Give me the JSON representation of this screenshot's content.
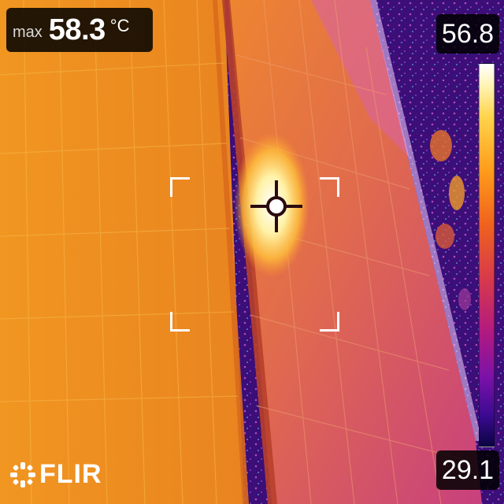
{
  "readout": {
    "label": "max",
    "value": "58.3",
    "unit": "°C"
  },
  "scale": {
    "max": "56.8",
    "min": "29.1"
  },
  "brand": {
    "name": "FLIR"
  },
  "palette": {
    "hot_spot": "#ffffff",
    "panel_left": "#ea8b1d",
    "panel_right": "#d85a7a",
    "background_cold": "#3a0d7a"
  },
  "icons": {
    "crosshair": "spot-meter-crosshair-icon",
    "logo": "flir-logo-icon"
  }
}
